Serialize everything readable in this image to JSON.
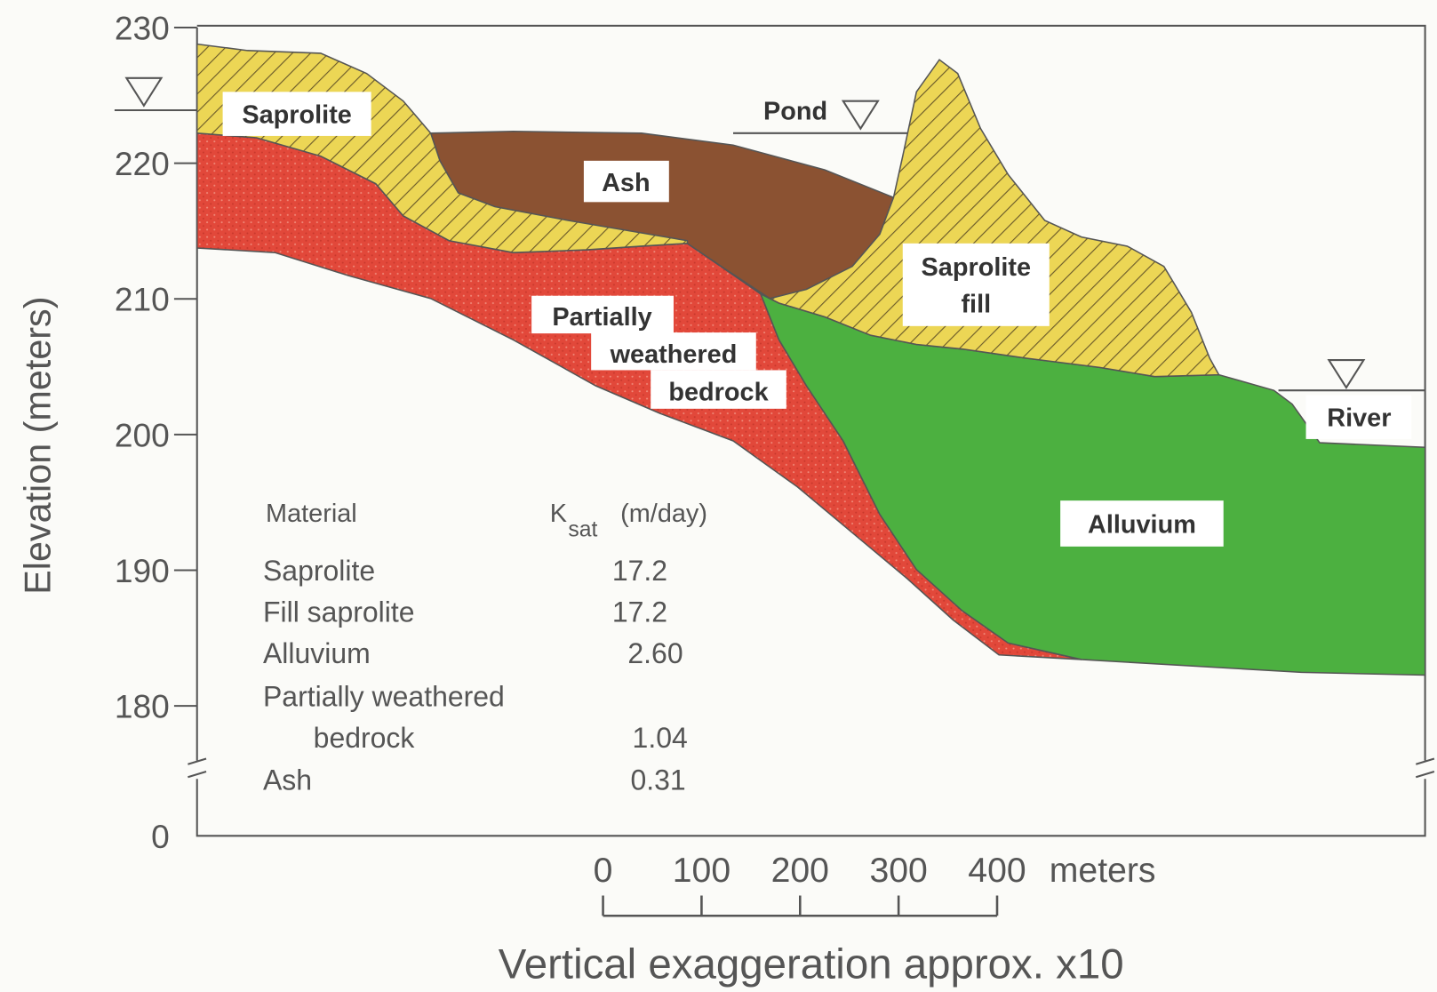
{
  "axis": {
    "label": "Elevation (meters)",
    "ticks": [
      230,
      220,
      210,
      200,
      190,
      180,
      0
    ]
  },
  "layers": {
    "saprolite": "Saprolite",
    "ash": "Ash",
    "saprolite_fill": [
      "Saprolite",
      "fill"
    ],
    "bedrock": [
      "Partially",
      "weathered",
      "bedrock"
    ],
    "alluvium": "Alluvium"
  },
  "water": {
    "pond": "Pond",
    "river": "River"
  },
  "table": {
    "header": {
      "material": "Material",
      "ksat_symbol": "K",
      "ksat_subscript": "sat",
      "ksat_unit": "(m/day)"
    },
    "rows": [
      {
        "material": [
          "Saprolite"
        ],
        "ksat": "17.2"
      },
      {
        "material": [
          "Fill saprolite"
        ],
        "ksat": "17.2"
      },
      {
        "material": [
          "Alluvium"
        ],
        "ksat": "2.60"
      },
      {
        "material": [
          "Partially weathered",
          "bedrock"
        ],
        "ksat": "1.04"
      },
      {
        "material": [
          "Ash"
        ],
        "ksat": "0.31"
      }
    ]
  },
  "scale": {
    "ticks": [
      0,
      100,
      200,
      300,
      400
    ],
    "unit": "meters"
  },
  "caption": "Vertical exaggeration approx. x10"
}
